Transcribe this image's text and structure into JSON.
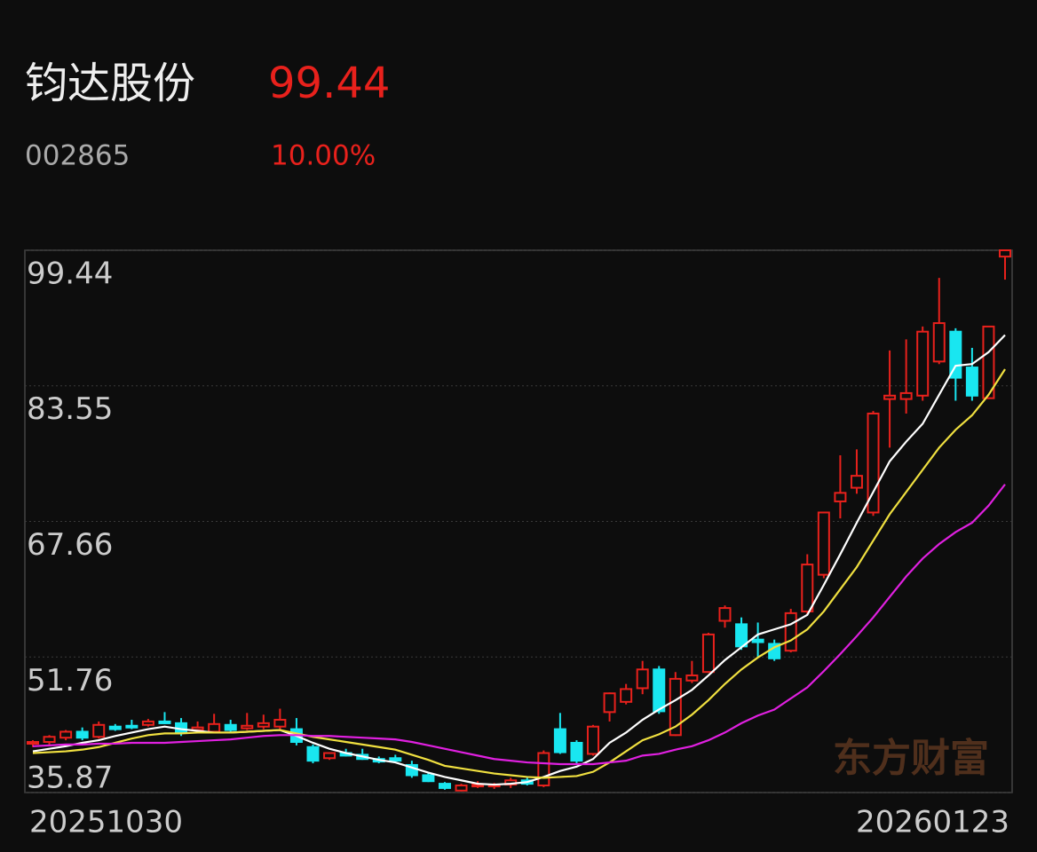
{
  "header": {
    "name": "钧达股份",
    "price": "99.44",
    "code": "002865",
    "change": "10.00%"
  },
  "chart_data": {
    "type": "candlestick",
    "watermark": "东方财富",
    "x_labels": [
      "20251030",
      "20260123"
    ],
    "ylim": [
      35.87,
      99.44
    ],
    "yticks": [
      99.44,
      83.55,
      67.66,
      51.76,
      35.87
    ],
    "grid": true,
    "up_color": "#e8211c",
    "down_color": "#19e6f0",
    "open": [
      41.6,
      41.8,
      42.3,
      43.0,
      42.4,
      43.6,
      43.7,
      43.8,
      44.2,
      44.0,
      43.2,
      43.0,
      43.8,
      43.4,
      43.6,
      43.6,
      43.3,
      41.2,
      39.9,
      40.5,
      40.3,
      39.8,
      39.9,
      39.1,
      37.9,
      36.9,
      36.1,
      36.7,
      36.6,
      36.8,
      37.3,
      36.7,
      43.3,
      41.7,
      40.4,
      45.3,
      46.5,
      48.1,
      50.3,
      42.6,
      49.0,
      50.0,
      56.0,
      55.6,
      53.8,
      53.3,
      52.5,
      57.1,
      61.4,
      70.0,
      71.6,
      68.7,
      82.0,
      82.0,
      82.4,
      86.4,
      89.9,
      85.7,
      82.1,
      98.7
    ],
    "high": [
      42.0,
      42.6,
      43.2,
      43.5,
      44.2,
      43.9,
      44.4,
      44.5,
      45.3,
      44.6,
      44.2,
      45.1,
      44.4,
      45.2,
      45.0,
      45.7,
      44.6,
      41.5,
      40.6,
      41.0,
      41.0,
      40.1,
      40.3,
      39.6,
      38.3,
      37.1,
      36.9,
      37.2,
      37.0,
      37.6,
      37.6,
      40.8,
      45.2,
      42.0,
      43.8,
      47.6,
      48.6,
      51.3,
      50.7,
      50.0,
      51.3,
      54.6,
      57.8,
      56.4,
      55.8,
      53.8,
      57.4,
      63.8,
      68.8,
      75.4,
      76.1,
      80.6,
      87.7,
      89.0,
      90.5,
      96.2,
      90.3,
      88.0,
      90.6,
      99.44
    ],
    "low": [
      41.2,
      41.5,
      42.0,
      42.0,
      42.2,
      43.1,
      43.3,
      43.6,
      43.9,
      42.5,
      42.9,
      42.9,
      42.9,
      43.2,
      43.3,
      43.3,
      41.4,
      39.3,
      39.7,
      40.1,
      39.7,
      39.3,
      39.5,
      37.6,
      37.1,
      36.2,
      36.0,
      36.4,
      36.3,
      36.4,
      36.7,
      36.5,
      40.4,
      39.3,
      40.2,
      44.2,
      46.2,
      47.4,
      45.1,
      42.5,
      48.7,
      49.9,
      55.2,
      52.6,
      51.8,
      51.3,
      52.3,
      56.7,
      61.0,
      68.0,
      70.9,
      68.3,
      76.3,
      80.3,
      81.8,
      86.1,
      81.8,
      81.8,
      82.0,
      96.0
    ],
    "close": [
      41.8,
      42.4,
      43.0,
      42.3,
      43.8,
      43.3,
      43.6,
      44.2,
      44.0,
      42.9,
      43.5,
      43.9,
      43.2,
      43.7,
      44.0,
      44.4,
      41.8,
      39.6,
      40.5,
      40.2,
      39.8,
      39.5,
      39.6,
      37.9,
      37.2,
      36.4,
      36.7,
      36.8,
      36.8,
      37.3,
      36.9,
      40.5,
      40.6,
      39.6,
      43.6,
      47.5,
      48.0,
      50.3,
      45.4,
      49.2,
      49.6,
      54.4,
      57.5,
      53.0,
      53.5,
      51.6,
      56.9,
      62.6,
      68.7,
      71.0,
      73.0,
      80.3,
      82.4,
      82.7,
      89.9,
      90.9,
      84.5,
      82.4,
      90.5,
      99.44
    ],
    "series": [
      {
        "color": "#ffffff",
        "values": [
          40.7,
          41.0,
          41.3,
          41.7,
          42.0,
          42.5,
          42.9,
          43.3,
          43.6,
          43.3,
          43.1,
          42.9,
          42.9,
          43.0,
          43.1,
          43.2,
          42.5,
          41.7,
          41.0,
          40.5,
          40.1,
          39.7,
          39.4,
          38.8,
          38.2,
          37.7,
          37.3,
          36.9,
          36.8,
          36.9,
          37.1,
          37.7,
          38.4,
          38.9,
          39.8,
          41.7,
          42.9,
          44.4,
          45.6,
          46.7,
          47.9,
          49.6,
          51.4,
          52.9,
          54.4,
          55.0,
          55.6,
          56.7,
          60.2,
          63.8,
          67.5,
          71.1,
          74.7,
          77.0,
          79.1,
          82.5,
          85.9,
          86.1,
          87.5,
          89.5
        ]
      },
      {
        "color": "#f0e040",
        "values": [
          40.5,
          40.6,
          40.7,
          40.9,
          41.2,
          41.7,
          42.2,
          42.6,
          42.8,
          42.8,
          42.9,
          42.9,
          42.9,
          43.0,
          43.1,
          43.2,
          42.8,
          42.4,
          42.1,
          41.8,
          41.5,
          41.2,
          40.9,
          40.3,
          39.7,
          39.0,
          38.7,
          38.4,
          38.1,
          37.9,
          37.7,
          37.6,
          37.7,
          37.8,
          38.3,
          39.4,
          40.7,
          42.0,
          42.7,
          43.6,
          45.0,
          46.7,
          48.6,
          50.3,
          51.7,
          52.9,
          53.7,
          55.0,
          57.1,
          59.7,
          62.3,
          65.4,
          68.5,
          71.1,
          73.7,
          76.3,
          78.4,
          80.1,
          82.5,
          85.5
        ]
      },
      {
        "color": "#e020e0",
        "values": [
          41.3,
          41.4,
          41.5,
          41.5,
          41.6,
          41.6,
          41.7,
          41.7,
          41.7,
          41.8,
          41.9,
          42.0,
          42.1,
          42.3,
          42.5,
          42.6,
          42.6,
          42.5,
          42.5,
          42.4,
          42.3,
          42.2,
          42.1,
          41.8,
          41.4,
          41.0,
          40.6,
          40.2,
          39.8,
          39.6,
          39.4,
          39.3,
          39.2,
          39.2,
          39.2,
          39.4,
          39.6,
          40.2,
          40.4,
          40.9,
          41.3,
          42.0,
          42.9,
          44.0,
          44.9,
          45.6,
          46.9,
          48.2,
          50.1,
          52.1,
          54.2,
          56.4,
          58.8,
          61.2,
          63.3,
          65.0,
          66.4,
          67.5,
          69.5,
          72.0
        ]
      }
    ]
  }
}
